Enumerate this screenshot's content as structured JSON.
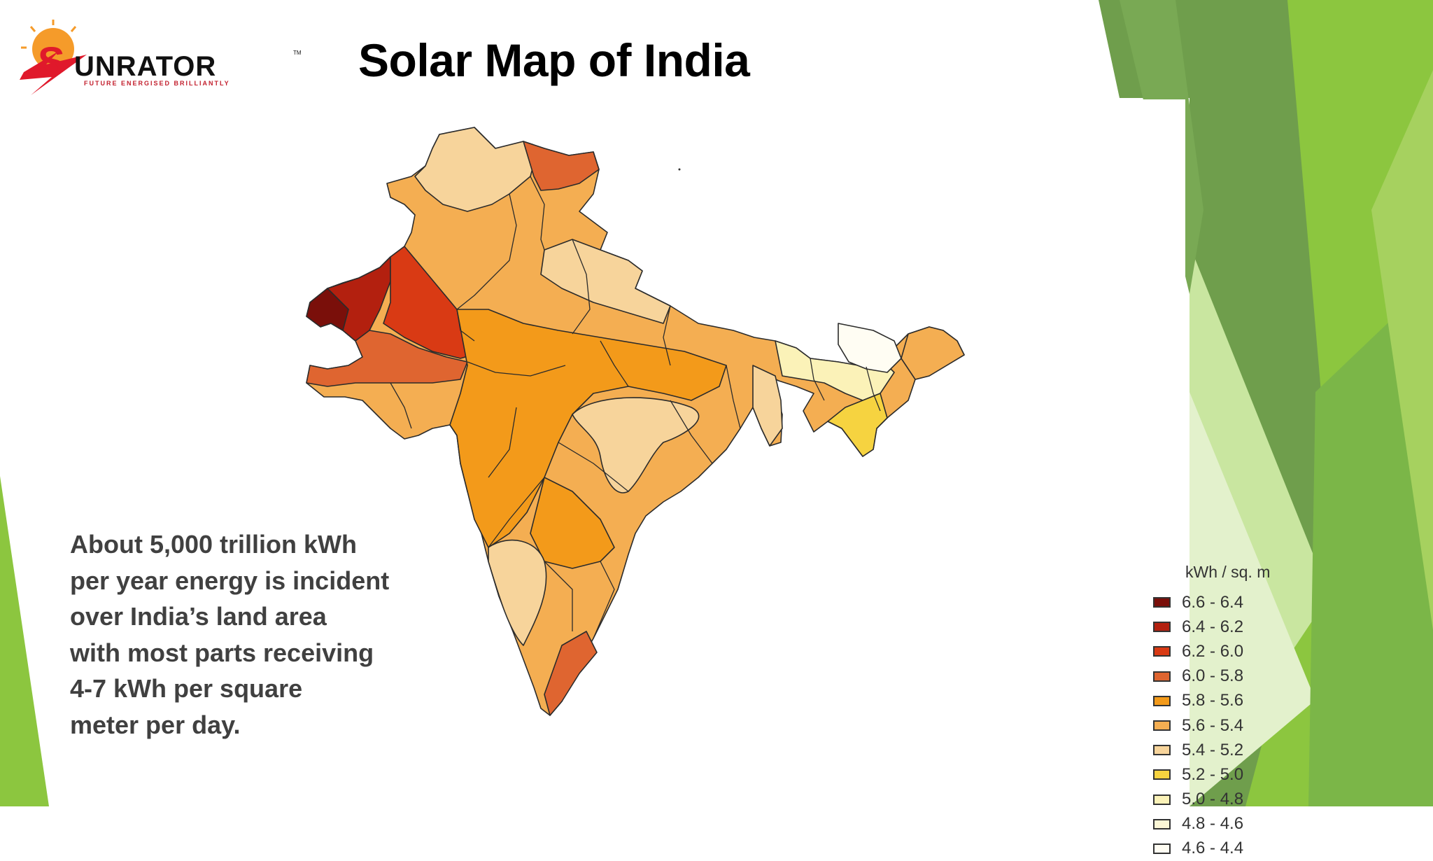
{
  "slide": {
    "title": "Solar Map of India",
    "body_lines": [
      "About 5,000 trillion kWh",
      "per year energy is incident",
      "over India’s land area",
      "with most parts receiving",
      "4-7 kWh per square",
      "meter per day."
    ]
  },
  "logo": {
    "wordmark_big": "UNRATOR",
    "wordmark_initial": "S",
    "tagline": "FUTURE ENERGISED BRILLIANTLY",
    "tm": "TM",
    "icon": "sun-lightning-logo-icon"
  },
  "legend": {
    "title": "kWh / sq. m",
    "items": [
      {
        "label": "6.6 - 6.4",
        "color": "#7a0f0a"
      },
      {
        "label": "6.4 - 6.2",
        "color": "#b3200f"
      },
      {
        "label": "6.2 - 6.0",
        "color": "#d93a14"
      },
      {
        "label": "6.0 - 5.8",
        "color": "#df6530"
      },
      {
        "label": "5.8 - 5.6",
        "color": "#f39a1a"
      },
      {
        "label": "5.6 - 5.4",
        "color": "#f4ae52"
      },
      {
        "label": "5.4 - 5.2",
        "color": "#f7d49b"
      },
      {
        "label": "5.2 - 5.0",
        "color": "#f6d340"
      },
      {
        "label": "5.0 - 4.8",
        "color": "#fbf2b8"
      },
      {
        "label": "4.8 - 4.6",
        "color": "#fcf7d6"
      },
      {
        "label": "4.6 - 4.4",
        "color": "#fffdf3"
      }
    ]
  },
  "theme": {
    "green_dark": "#5e9c3a",
    "green_mid": "#7fb93b",
    "green_light": "#b9dc84",
    "green_pale": "#e4f1cf"
  }
}
